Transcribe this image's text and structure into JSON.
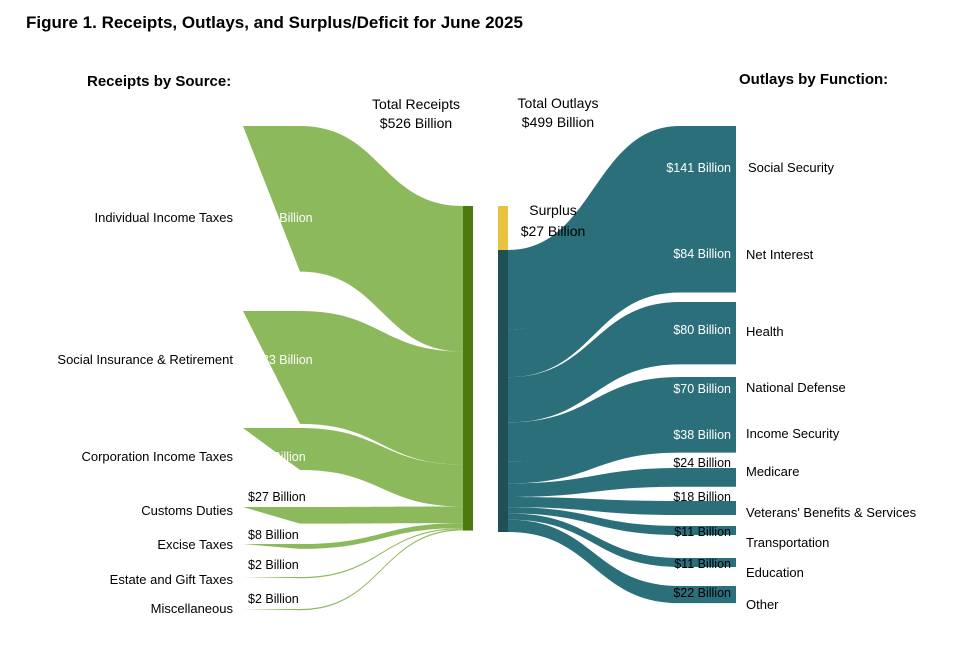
{
  "title": "Figure 1. Receipts, Outlays, and Surplus/Deficit for June 2025",
  "chart_data": {
    "type": "sankey",
    "unit": "Billion",
    "receipts_heading": "Receipts by Source:",
    "outlays_heading": "Outlays by Function:",
    "total_receipts": {
      "label": "Total Receipts",
      "value_text": "$526 Billion",
      "value": 526
    },
    "total_outlays": {
      "label": "Total Outlays",
      "value_text": "$499 Billion",
      "value": 499
    },
    "surplus": {
      "label": "Surplus",
      "value_text": "$27 Billion",
      "value": 27
    },
    "receipts": [
      {
        "name": "Individual Income Taxes",
        "value": 236,
        "value_text": "$236 Billion"
      },
      {
        "name": "Social Insurance & Retirement",
        "value": 183,
        "value_text": "$183 Billion"
      },
      {
        "name": "Corporation Income Taxes",
        "value": 68,
        "value_text": "$68 Billion"
      },
      {
        "name": "Customs Duties",
        "value": 27,
        "value_text": "$27 Billion"
      },
      {
        "name": "Excise Taxes",
        "value": 8,
        "value_text": "$8 Billion"
      },
      {
        "name": "Estate and Gift Taxes",
        "value": 2,
        "value_text": "$2 Billion"
      },
      {
        "name": "Miscellaneous",
        "value": 2,
        "value_text": "$2 Billion"
      }
    ],
    "outlays": [
      {
        "name": "Social Security",
        "value": 141,
        "value_text": "$141 Billion"
      },
      {
        "name": "Net Interest",
        "value": 84,
        "value_text": "$84 Billion"
      },
      {
        "name": "Health",
        "value": 80,
        "value_text": "$80 Billion"
      },
      {
        "name": "National Defense",
        "value": 70,
        "value_text": "$70 Billion"
      },
      {
        "name": "Income Security",
        "value": 38,
        "value_text": "$38 Billion"
      },
      {
        "name": "Medicare",
        "value": 24,
        "value_text": "$24 Billion"
      },
      {
        "name": "Veterans' Benefits & Services",
        "value": 18,
        "value_text": "$18 Billion"
      },
      {
        "name": "Transportation",
        "value": 11,
        "value_text": "$11 Billion"
      },
      {
        "name": "Education",
        "value": 11,
        "value_text": "$11 Billion"
      },
      {
        "name": "Other",
        "value": 22,
        "value_text": "$22 Billion"
      }
    ]
  },
  "colors": {
    "receipts_flow": "#8db95d",
    "receipts_bar": "#4d7a0f",
    "outlays_flow": "#2b6f7b",
    "outlays_bar": "#1f4f57",
    "surplus": "#e8c33f"
  }
}
